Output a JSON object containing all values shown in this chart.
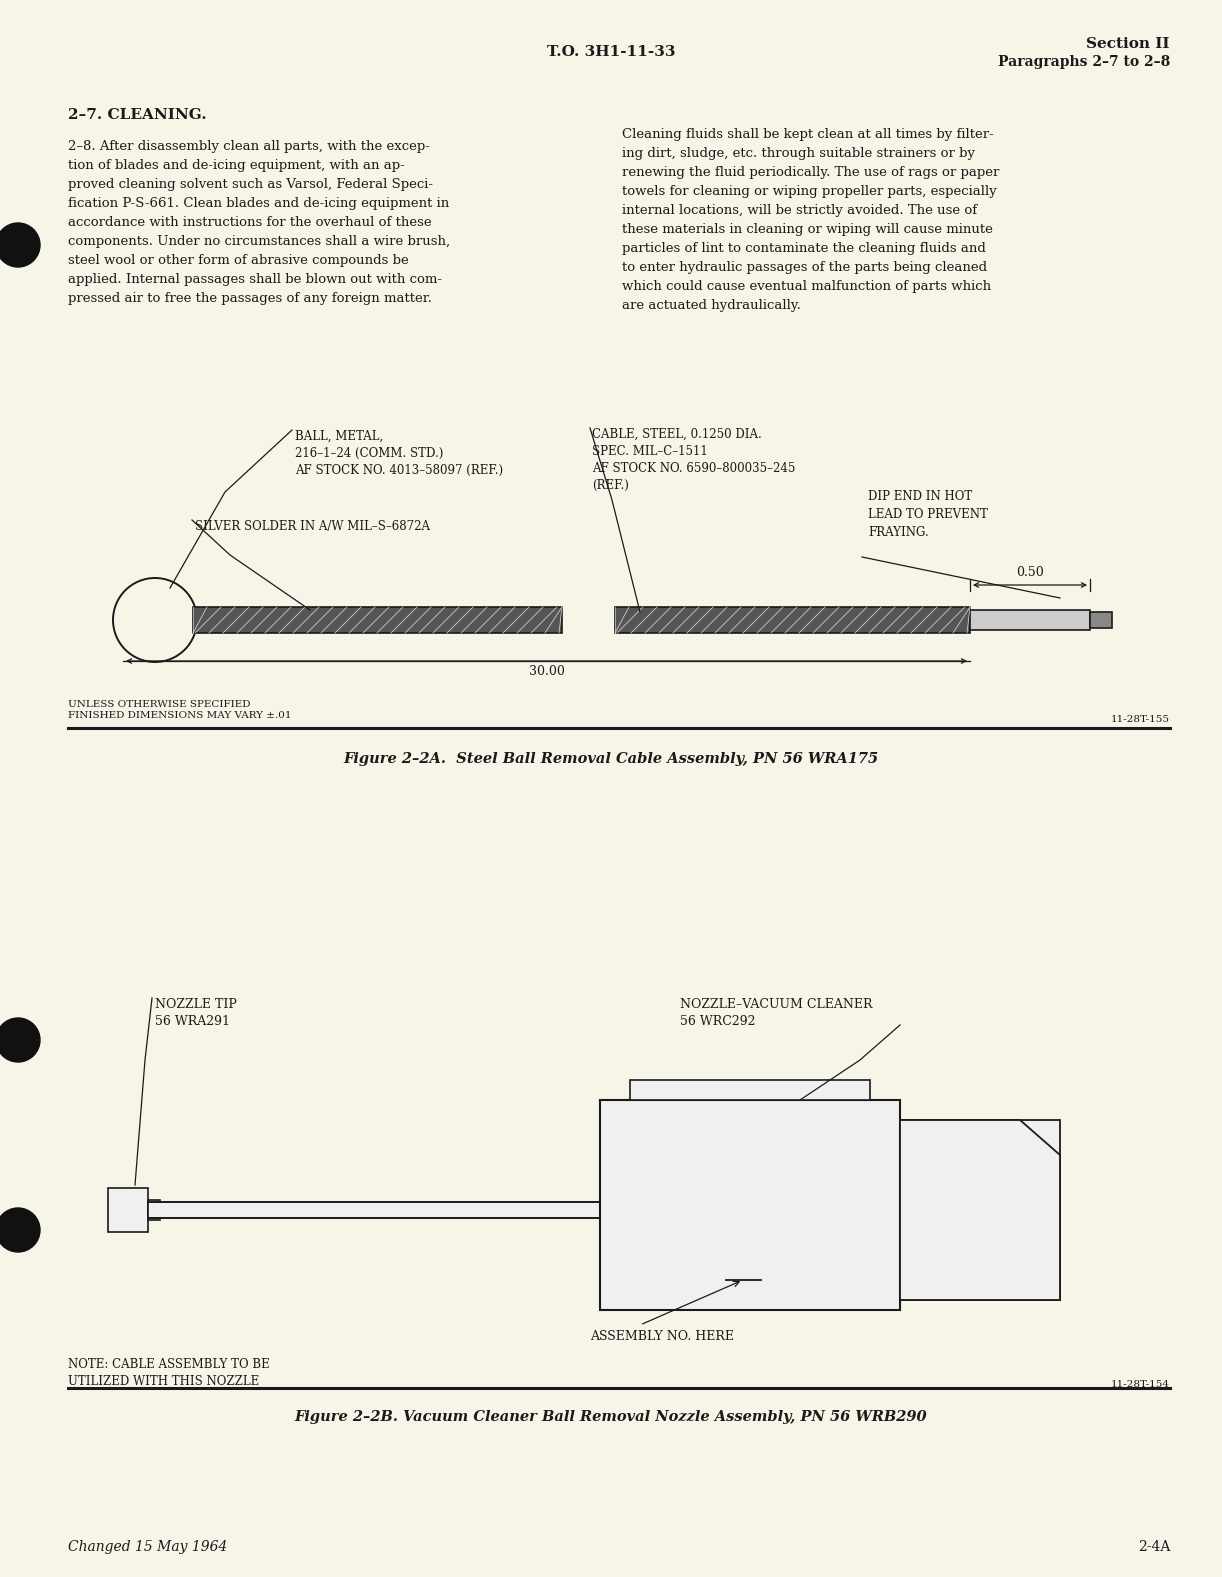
{
  "page_bg": "#f7f5e8",
  "text_color": "#1a1a1a",
  "header_center": "T.O. 3H1-11-33",
  "header_right_line1": "Section II",
  "header_right_line2": "Paragraphs 2–7 to 2–8",
  "section_heading": "2–7. CLEANING.",
  "para_left": "2–8. After disassembly clean all parts, with the excep-\ntion of blades and de-icing equipment, with an ap-\nproved cleaning solvent such as Varsol, Federal Speci-\nfication P-S-661. Clean blades and de-icing equipment in\naccordance with instructions for the overhaul of these\ncomponents. Under no circumstances shall a wire brush,\nsteel wool or other form of abrasive compounds be\napplied. Internal passages shall be blown out with com-\npressed air to free the passages of any foreign matter.",
  "para_right": "Cleaning fluids shall be kept clean at all times by filter-\ning dirt, sludge, etc. through suitable strainers or by\nrenewing the fluid periodically. The use of rags or paper\ntowels for cleaning or wiping propeller parts, especially\ninternal locations, will be strictly avoided. The use of\nthese materials in cleaning or wiping will cause minute\nparticles of lint to contaminate the cleaning fluids and\nto enter hydraulic passages of the parts being cleaned\nwhich could cause eventual malfunction of parts which\nare actuated hydraulically.",
  "fig1_caption": "Figure 2–2A.  Steel Ball Removal Cable Assembly, PN 56 WRA175",
  "fig2_caption": "Figure 2–2B. Vacuum Cleaner Ball Removal Nozzle Assembly, PN 56 WRB290",
  "fig1_ref": "11-28T-155",
  "fig2_ref": "11-28T-154",
  "fig1_note_left": "UNLESS OTHERWISE SPECIFIED\nFINISHED DIMENSIONS MAY VARY ±.01",
  "fig1_dim_30": "30.00",
  "fig1_dim_05": "0.50",
  "fig1_label_ball": "BALL, METAL,\n216–1–24 (COMM. STD.)\nAF STOCK NO. 4013–58097 (REF.)",
  "fig1_label_silver": "SILVER SOLDER IN A/W MIL–S–6872A",
  "fig1_label_cable": "CABLE, STEEL, 0.1250 DIA.\nSPEC. MIL–C–1511\nAF STOCK NO. 6590–800035–245\n(REF.)",
  "fig1_label_dip": "DIP END IN HOT\nLEAD TO PREVENT\nFRAYING.",
  "fig2_label_nozzle_tip": "NOZZLE TIP\n56 WRA291",
  "fig2_label_vacuum": "NOZZLE–VACUUM CLEANER\n56 WRC292",
  "fig2_label_assembly": "ASSEMBLY NO. HERE",
  "fig2_note": "NOTE: CABLE ASSEMBLY TO BE\nUTILIZED WITH THIS NOZZLE",
  "footer_left": "Changed 15 May 1964",
  "footer_right": "2-4A"
}
